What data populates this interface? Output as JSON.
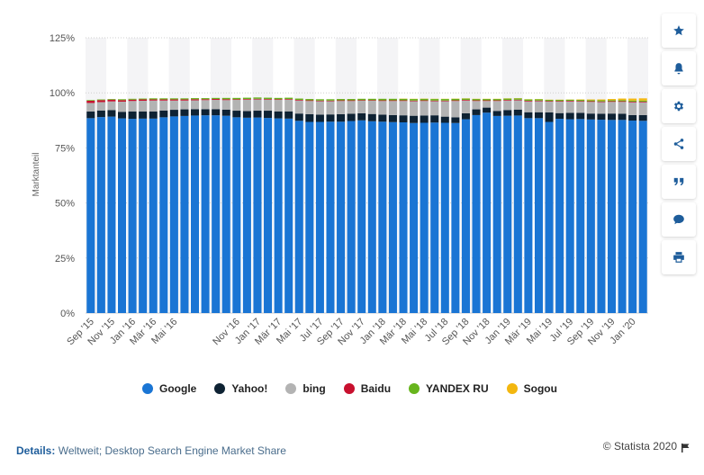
{
  "colors": {
    "google": "#1a75d4",
    "yahoo": "#0e2233",
    "bing": "#b3b3b3",
    "baidu": "#c8102e",
    "yandex": "#67b51d",
    "sogou": "#f3b70f",
    "stripe": "#f4f4f6",
    "grid": "#cfcfcf",
    "icon": "#1e5d9b"
  },
  "sidebar": {
    "icons": [
      "star-icon",
      "bell-icon",
      "gear-icon",
      "share-icon",
      "quote-icon",
      "comment-icon",
      "print-icon"
    ]
  },
  "legend": {
    "items": [
      {
        "name": "Google",
        "color": "#1a75d4"
      },
      {
        "name": "Yahoo!",
        "color": "#0e2233"
      },
      {
        "name": "bing",
        "color": "#b3b3b3"
      },
      {
        "name": "Baidu",
        "color": "#c8102e"
      },
      {
        "name": "YANDEX RU",
        "color": "#67b51d"
      },
      {
        "name": "Sogou",
        "color": "#f3b70f"
      }
    ]
  },
  "footer": {
    "details_label": "Details:",
    "details_text": "Weltweit; Desktop Search Engine Market Share",
    "copyright": "© Statista 2020"
  },
  "chart_data": {
    "type": "bar",
    "stacked": true,
    "ylabel": "Marktanteil",
    "yticks": [
      "0%",
      "25%",
      "50%",
      "75%",
      "100%",
      "125%"
    ],
    "ylim": [
      0,
      125
    ],
    "grid": true,
    "legend_position": "bottom",
    "categories": [
      "Sep '15",
      "Okt '15",
      "Nov '15",
      "Dez '15",
      "Jan '16",
      "Feb '16",
      "Mär '16",
      "Apr '16",
      "Mai '16",
      "Jun '16",
      "Jul '16",
      "Aug '16",
      "Sep '16",
      "Okt '16",
      "Nov '16",
      "Dez '16",
      "Jan '17",
      "Feb '17",
      "Mär '17",
      "Apr '17",
      "Mai '17",
      "Jun '17",
      "Jul '17",
      "Aug '17",
      "Sep '17",
      "Okt '17",
      "Nov '17",
      "Dez '17",
      "Jan '18",
      "Feb '18",
      "Mär '18",
      "Apr '18",
      "Mai '18",
      "Jun '18",
      "Jul '18",
      "Aug '18",
      "Sep '18",
      "Okt '18",
      "Nov '18",
      "Dez '18",
      "Jan '19",
      "Feb '19",
      "Mär '19",
      "Apr '19",
      "Mai '19",
      "Jun '19",
      "Jul '19",
      "Aug '19",
      "Sep '19",
      "Okt '19",
      "Nov '19",
      "Dez '19",
      "Jan '20",
      "Feb '20"
    ],
    "xtick_labels": [
      "Sep '15",
      "Nov '15",
      "Jan '16",
      "Mär '16",
      "Mai '16",
      "Nov '16",
      "Jan '17",
      "Mär '17",
      "Mai '17",
      "Jul '17",
      "Sep '17",
      "Nov '17",
      "Jan '18",
      "Mär '18",
      "Mai '18",
      "Jul '18",
      "Sep '18",
      "Nov '18",
      "Jan '19",
      "Mär '19",
      "Mai '19",
      "Jul '19",
      "Sep '19",
      "Nov '19",
      "Jan '20"
    ],
    "series": [
      {
        "name": "Google",
        "values": [
          88.5,
          89.0,
          89.2,
          88.4,
          88.2,
          88.3,
          88.3,
          88.9,
          89.3,
          89.5,
          89.7,
          89.8,
          89.8,
          89.6,
          88.9,
          88.7,
          88.8,
          88.6,
          88.4,
          88.3,
          87.3,
          86.8,
          86.8,
          86.9,
          86.9,
          87.2,
          87.5,
          87.1,
          86.9,
          86.7,
          86.6,
          86.3,
          86.4,
          86.5,
          86.4,
          86.3,
          88.0,
          89.9,
          91.0,
          89.5,
          89.6,
          89.7,
          88.5,
          88.5,
          86.8,
          88.2,
          88.0,
          88.1,
          87.9,
          87.8,
          87.7,
          87.7,
          87.4,
          87.3
        ]
      },
      {
        "name": "Yahoo!",
        "values": [
          3.0,
          3.0,
          3.0,
          3.0,
          3.3,
          3.2,
          3.2,
          3.1,
          3.0,
          3.0,
          2.9,
          2.8,
          2.8,
          2.8,
          3.0,
          3.0,
          3.1,
          3.3,
          3.2,
          3.3,
          3.3,
          3.5,
          3.3,
          3.3,
          3.4,
          3.3,
          3.2,
          3.3,
          3.2,
          3.2,
          3.2,
          3.3,
          3.3,
          3.3,
          2.8,
          2.6,
          2.7,
          2.6,
          2.3,
          2.3,
          2.6,
          2.7,
          2.7,
          2.7,
          4.3,
          2.6,
          2.9,
          2.8,
          2.7,
          2.7,
          2.9,
          2.8,
          2.5,
          2.6
        ]
      },
      {
        "name": "bing",
        "values": [
          3.9,
          3.8,
          3.9,
          4.6,
          4.8,
          4.9,
          5.0,
          4.5,
          4.2,
          4.0,
          4.0,
          4.1,
          4.2,
          4.3,
          4.9,
          5.2,
          5.1,
          5.0,
          5.2,
          5.3,
          5.9,
          6.0,
          6.1,
          6.0,
          6.0,
          5.8,
          5.7,
          6.0,
          6.2,
          6.4,
          6.5,
          6.6,
          6.6,
          6.4,
          7.0,
          7.4,
          5.8,
          3.8,
          3.0,
          4.5,
          4.3,
          4.2,
          4.9,
          5.0,
          4.9,
          5.2,
          5.2,
          5.1,
          5.3,
          5.3,
          5.3,
          5.4,
          5.8,
          5.8
        ]
      },
      {
        "name": "Baidu",
        "values": [
          1.0,
          0.9,
          0.8,
          0.7,
          0.6,
          0.6,
          0.5,
          0.5,
          0.5,
          0.5,
          0.5,
          0.4,
          0.4,
          0.4,
          0.3,
          0.3,
          0.3,
          0.3,
          0.3,
          0.3,
          0.3,
          0.3,
          0.3,
          0.3,
          0.3,
          0.3,
          0.3,
          0.3,
          0.3,
          0.3,
          0.3,
          0.3,
          0.3,
          0.3,
          0.3,
          0.3,
          0.3,
          0.3,
          0.3,
          0.3,
          0.3,
          0.3,
          0.3,
          0.3,
          0.3,
          0.3,
          0.3,
          0.3,
          0.3,
          0.3,
          0.3,
          0.3,
          0.3,
          0.3
        ]
      },
      {
        "name": "YANDEX RU",
        "values": [
          0.3,
          0.3,
          0.3,
          0.4,
          0.4,
          0.4,
          0.5,
          0.5,
          0.5,
          0.5,
          0.5,
          0.5,
          0.5,
          0.6,
          0.6,
          0.6,
          0.6,
          0.6,
          0.6,
          0.6,
          0.6,
          0.6,
          0.6,
          0.6,
          0.6,
          0.6,
          0.6,
          0.6,
          0.7,
          0.7,
          0.7,
          0.7,
          0.7,
          0.7,
          0.7,
          0.7,
          0.6,
          0.6,
          0.6,
          0.6,
          0.6,
          0.6,
          0.6,
          0.6,
          0.5,
          0.5,
          0.5,
          0.5,
          0.5,
          0.5,
          0.5,
          0.5,
          0.5,
          0.5
        ]
      },
      {
        "name": "Sogou",
        "values": [
          0.0,
          0.0,
          0.0,
          0.0,
          0.0,
          0.0,
          0.0,
          0.0,
          0.0,
          0.0,
          0.0,
          0.0,
          0.0,
          0.0,
          0.0,
          0.0,
          0.0,
          0.0,
          0.0,
          0.0,
          0.0,
          0.0,
          0.0,
          0.0,
          0.0,
          0.0,
          0.0,
          0.0,
          0.0,
          0.0,
          0.1,
          0.1,
          0.1,
          0.1,
          0.1,
          0.1,
          0.1,
          0.1,
          0.1,
          0.1,
          0.1,
          0.1,
          0.1,
          0.1,
          0.1,
          0.1,
          0.1,
          0.2,
          0.3,
          0.4,
          0.5,
          0.7,
          0.9,
          1.0
        ]
      }
    ]
  }
}
